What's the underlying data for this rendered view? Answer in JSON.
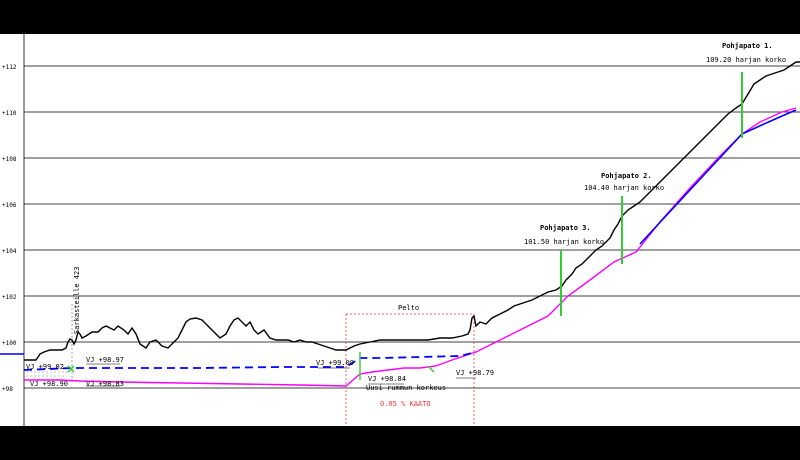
{
  "chart_data": {
    "type": "line",
    "y_ticks": [
      "+98",
      "+100",
      "+102",
      "+104",
      "+106",
      "+108",
      "+110",
      "+112"
    ],
    "ylim": [
      98,
      112
    ],
    "dams": [
      {
        "name": "Pohjapato 1.",
        "crest": "109.20 harjan korko",
        "elevation": 109.2
      },
      {
        "name": "Pohjapato 2.",
        "crest": "104.40 harjan korko",
        "elevation": 104.4
      },
      {
        "name": "Pohjapato 3.",
        "crest": "101.50 harjan korko",
        "elevation": 101.5
      }
    ],
    "annotations": {
      "cross_section": "Sarkasteille 423",
      "field": "Pelto",
      "slope": "0.05 % KAATO",
      "new_culvert": "Uusi rummun korkeus",
      "vj_labels": [
        "VJ +99.02",
        "VJ +98.97",
        "VJ +98.90",
        "VJ +98.83",
        "VJ +99.09",
        "VJ +98.84",
        "VJ +98.79"
      ]
    },
    "series": [
      {
        "color": "#000000",
        "values": []
      },
      {
        "color": "#ff00ff",
        "values": []
      },
      {
        "color": "#0000ff",
        "values": []
      },
      {
        "color": "#00cc00",
        "values": []
      }
    ]
  },
  "colors": {
    "terrain": "#000000",
    "design": "#ff00ff",
    "water": "#0000ff",
    "dam": "#33cc33",
    "annot": "#ff3333"
  }
}
